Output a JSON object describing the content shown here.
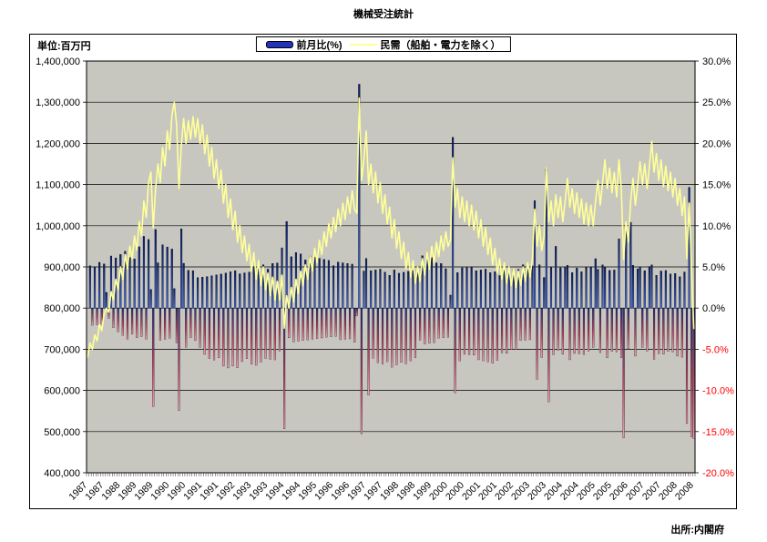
{
  "page": {
    "title": "機械受注統計",
    "unit_label": "単位:百万円",
    "source_label": "出所:内閣府"
  },
  "legend": {
    "bar_label": "前月比(%)",
    "line_label": "民需（船舶・電力を除く）"
  },
  "colors": {
    "bar_positive_top": "#0a1e6e",
    "bar_positive_bottom": "#4466cc",
    "bar_negative_top": "#282d80",
    "bar_negative_mid": "#b84468",
    "bar_negative_tip": "#f09cb0",
    "line": "#ffff99",
    "plot_bg": "#c7c7bf",
    "grid": "#000000",
    "negative_tick_label": "#ff0000",
    "legend_swatch": "#2233bb"
  },
  "chart_data": {
    "type": "combo-bar-line",
    "title": "機械受注統計",
    "grid": true,
    "legend_position": "top-center",
    "x_axis": {
      "freq": "monthly",
      "first_month": "1987-04",
      "tick_interval_months": 7,
      "tick_labels": [
        "1987",
        "1987",
        "1988",
        "1989",
        "1989",
        "1990",
        "1990",
        "1991",
        "1991",
        "1992",
        "1993",
        "1993",
        "1994",
        "1994",
        "1995",
        "1996",
        "1996",
        "1997",
        "1997",
        "1998",
        "1998",
        "1999",
        "2000",
        "2000",
        "2001",
        "2001",
        "2002",
        "2003",
        "2003",
        "2004",
        "2004",
        "2005",
        "2005",
        "2006",
        "2007",
        "2007",
        "2008",
        "2008"
      ]
    },
    "left_axis": {
      "unit": "百万円",
      "min": 400000,
      "max": 1400000,
      "step": 100000,
      "tick_labels": [
        "1,400,000",
        "1,300,000",
        "1,200,000",
        "1,100,000",
        "1,000,000",
        "900,000",
        "800,000",
        "700,000",
        "600,000",
        "500,000",
        "400,000"
      ]
    },
    "right_axis": {
      "unit": "%",
      "min": -20,
      "max": 30,
      "step": 5,
      "tick_labels": [
        "30.0%",
        "25.0%",
        "20.0%",
        "15.0%",
        "10.0%",
        "5.0%",
        "0.0%",
        "-5.0%",
        "-10.0%",
        "-15.0%",
        "-20.0%"
      ]
    },
    "series": [
      {
        "name": "前月比(%)",
        "type": "bar",
        "axis": "right",
        "derivation": "month-over-month percent change of the 民需 line values"
      },
      {
        "name": "民需（船舶・電力を除く）",
        "type": "line",
        "axis": "left",
        "values": [
          680000,
          715000,
          700000,
          735000,
          720000,
          760000,
          745000,
          785000,
          800000,
          790000,
          840000,
          820000,
          870000,
          845000,
          900000,
          870000,
          930000,
          895000,
          950000,
          920000,
          975000,
          940000,
          1010000,
          975000,
          1060000,
          1020000,
          1105000,
          1130000,
          995000,
          1090000,
          1150000,
          1105000,
          1190000,
          1145000,
          1230000,
          1185000,
          1270000,
          1300000,
          1245000,
          1090000,
          1195000,
          1260000,
          1200000,
          1255000,
          1210000,
          1265000,
          1215000,
          1260000,
          1200000,
          1245000,
          1175000,
          1220000,
          1145000,
          1190000,
          1115000,
          1160000,
          1090000,
          1135000,
          1055000,
          1100000,
          1020000,
          1065000,
          990000,
          1035000,
          960000,
          1000000,
          935000,
          975000,
          915000,
          955000,
          890000,
          935000,
          870000,
          915000,
          855000,
          900000,
          845000,
          885000,
          830000,
          875000,
          820000,
          865000,
          820000,
          880000,
          751000,
          830000,
          800000,
          850000,
          815000,
          870000,
          835000,
          890000,
          855000,
          905000,
          870000,
          925000,
          890000,
          945000,
          910000,
          965000,
          930000,
          985000,
          950000,
          1005000,
          970000,
          1020000,
          985000,
          1040000,
          1000000,
          1055000,
          1015000,
          1070000,
          1030000,
          1085000,
          1040000,
          1030000,
          1310000,
          1110000,
          1160000,
          1230000,
          1100000,
          1150000,
          1080000,
          1130000,
          1055000,
          1105000,
          1030000,
          1075000,
          1005000,
          1045000,
          970000,
          1015000,
          945000,
          985000,
          920000,
          960000,
          895000,
          935000,
          875000,
          915000,
          860000,
          900000,
          865000,
          920000,
          880000,
          935000,
          895000,
          950000,
          910000,
          960000,
          925000,
          975000,
          940000,
          985000,
          950000,
          965000,
          1165000,
          1045000,
          1090000,
          1020000,
          1070000,
          1010000,
          1060000,
          1000000,
          1050000,
          990000,
          1035000,
          970000,
          1015000,
          950000,
          995000,
          930000,
          970000,
          905000,
          945000,
          885000,
          920000,
          870000,
          910000,
          860000,
          900000,
          855000,
          895000,
          850000,
          890000,
          855000,
          900000,
          865000,
          910000,
          875000,
          920000,
          1040000,
          950000,
          1000000,
          940000,
          975000,
          1140000,
          1010000,
          1060000,
          1000000,
          1075000,
          1020000,
          1070000,
          1010000,
          1060000,
          1115000,
          1045000,
          1090000,
          1030000,
          1080000,
          1020000,
          1065000,
          1005000,
          1055000,
          1000000,
          1050000,
          1000000,
          1060000,
          1110000,
          1050000,
          1105000,
          1160000,
          1090000,
          1140000,
          1080000,
          1130000,
          1070000,
          1160000,
          1090000,
          918000,
          1010000,
          960000,
          1060000,
          1115000,
          1050000,
          1100000,
          1155000,
          1100000,
          1150000,
          1090000,
          1145000,
          1205000,
          1130000,
          1175000,
          1110000,
          1160000,
          1095000,
          1145000,
          1085000,
          1130000,
          1070000,
          1115000,
          1050000,
          1090000,
          1025000,
          1070000,
          920000,
          1055000,
          890000,
          749000
        ]
      }
    ]
  }
}
